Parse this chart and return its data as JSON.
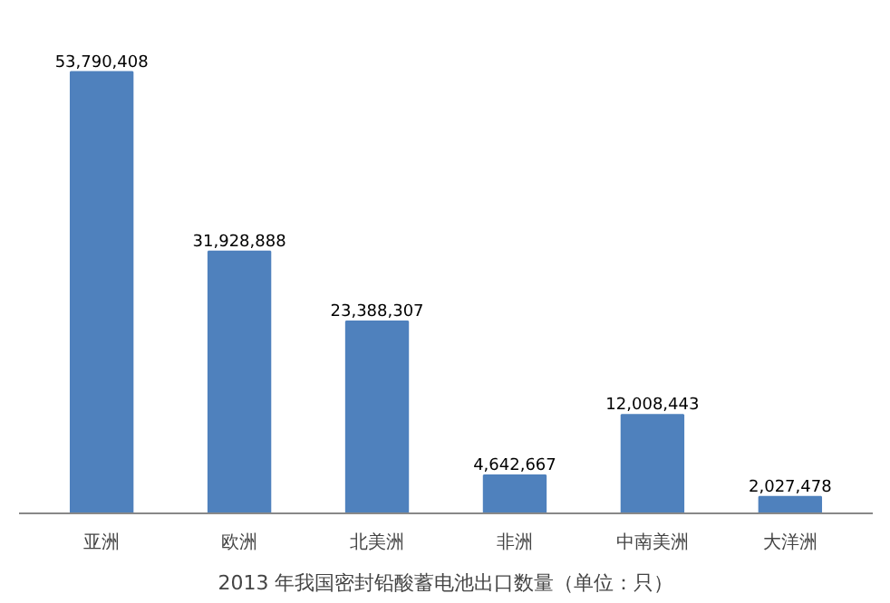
{
  "chart_data": {
    "type": "bar",
    "title": "2013 年我国密封铅酸蓄电池出口数量（单位：只）",
    "categories": [
      "亚洲",
      "欧洲",
      "北美洲",
      "非洲",
      "中南美洲",
      "大洋洲"
    ],
    "values": [
      53790408,
      31928888,
      23388307,
      4642667,
      12008443,
      2027478
    ],
    "value_labels": [
      "53,790,408",
      "31,928,888",
      "23,388,307",
      "4,642,667",
      "12,008,443",
      "2,027,478"
    ],
    "color": "#4f81bd",
    "grid": false
  }
}
